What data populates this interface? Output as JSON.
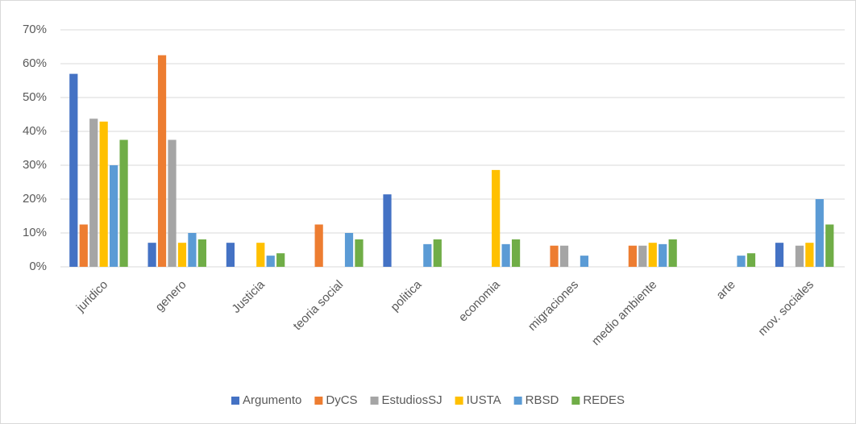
{
  "chart_data": {
    "type": "bar",
    "categories": [
      "juridico",
      "genero",
      "Justicia",
      "teoria social",
      "politica",
      "economia",
      "migraciones",
      "medio ambiente",
      "arte",
      "mov. sociales"
    ],
    "series": [
      {
        "name": "Argumento",
        "color": "#4472c4",
        "values": [
          57,
          7.1,
          7.1,
          0,
          21.4,
          0,
          0,
          0,
          0,
          7.1
        ]
      },
      {
        "name": "DyCS",
        "color": "#ed7d31",
        "values": [
          12.5,
          62.5,
          0,
          12.5,
          0,
          0,
          6.25,
          6.25,
          0,
          0
        ]
      },
      {
        "name": "EstudiosSJ",
        "color": "#a5a5a5",
        "values": [
          43.75,
          37.5,
          0,
          0,
          0,
          0,
          6.25,
          6.25,
          0,
          6.25
        ]
      },
      {
        "name": "IUSTA",
        "color": "#ffc000",
        "values": [
          42.9,
          7.1,
          7.1,
          0,
          0,
          28.6,
          0,
          7.1,
          0,
          7.1
        ]
      },
      {
        "name": "RBSD",
        "color": "#5b9bd5",
        "values": [
          30,
          10,
          3.3,
          10,
          6.7,
          6.7,
          3.3,
          6.7,
          3.3,
          20
        ]
      },
      {
        "name": "REDES",
        "color": "#70ad47",
        "values": [
          37.5,
          8.1,
          4,
          8.1,
          8.1,
          8.1,
          0,
          8.1,
          4,
          12.5
        ]
      }
    ],
    "ylim": [
      0,
      70
    ],
    "yticks": [
      {
        "value": 0,
        "label": "0%"
      },
      {
        "value": 10,
        "label": "10%"
      },
      {
        "value": 20,
        "label": "20%"
      },
      {
        "value": 30,
        "label": "30%"
      },
      {
        "value": 40,
        "label": "40%"
      },
      {
        "value": 50,
        "label": "50%"
      },
      {
        "value": 60,
        "label": "60%"
      },
      {
        "value": 70,
        "label": "70%"
      }
    ],
    "grid": true,
    "legend": "bottom"
  }
}
